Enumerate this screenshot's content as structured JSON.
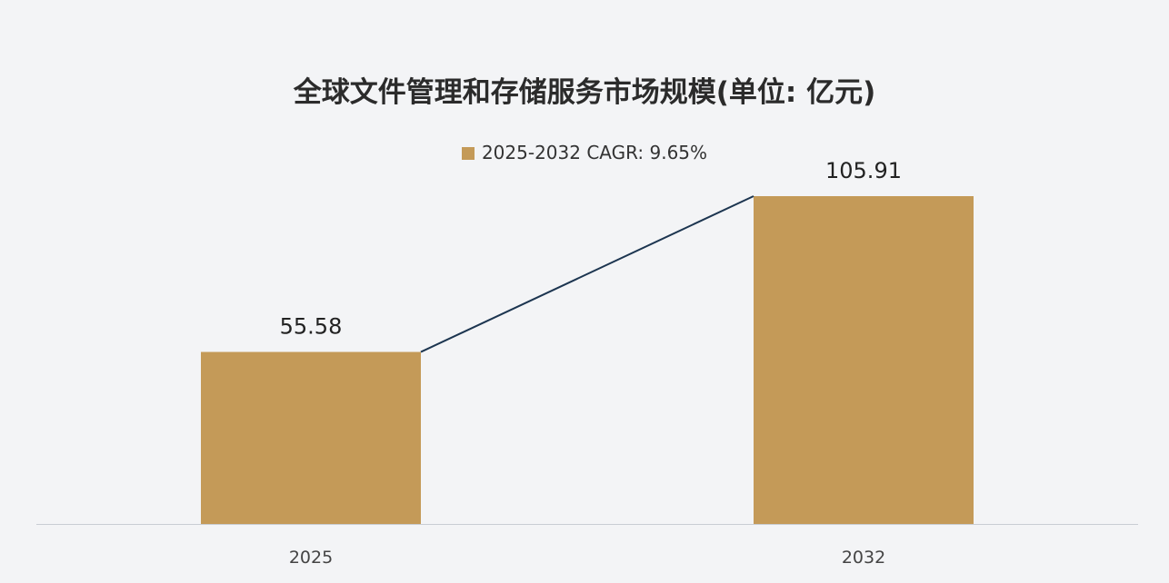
{
  "chart_data": {
    "type": "bar",
    "title": "全球文件管理和存储服务市场规模(单位: 亿元)",
    "categories": [
      "2025",
      "2032"
    ],
    "series": [
      {
        "name": "2025-2032 CAGR: 9.65%",
        "values": [
          55.58,
          105.91
        ],
        "color": "#c49a58"
      }
    ],
    "data_labels": [
      "55.58",
      "105.91"
    ],
    "connector_line": {
      "color": "#1c3550",
      "from_category": "2025",
      "to_category": "2032"
    },
    "xlabel": "",
    "ylabel": "",
    "ylim": [
      0,
      120
    ],
    "grid": false,
    "legend_position": "top-center"
  }
}
